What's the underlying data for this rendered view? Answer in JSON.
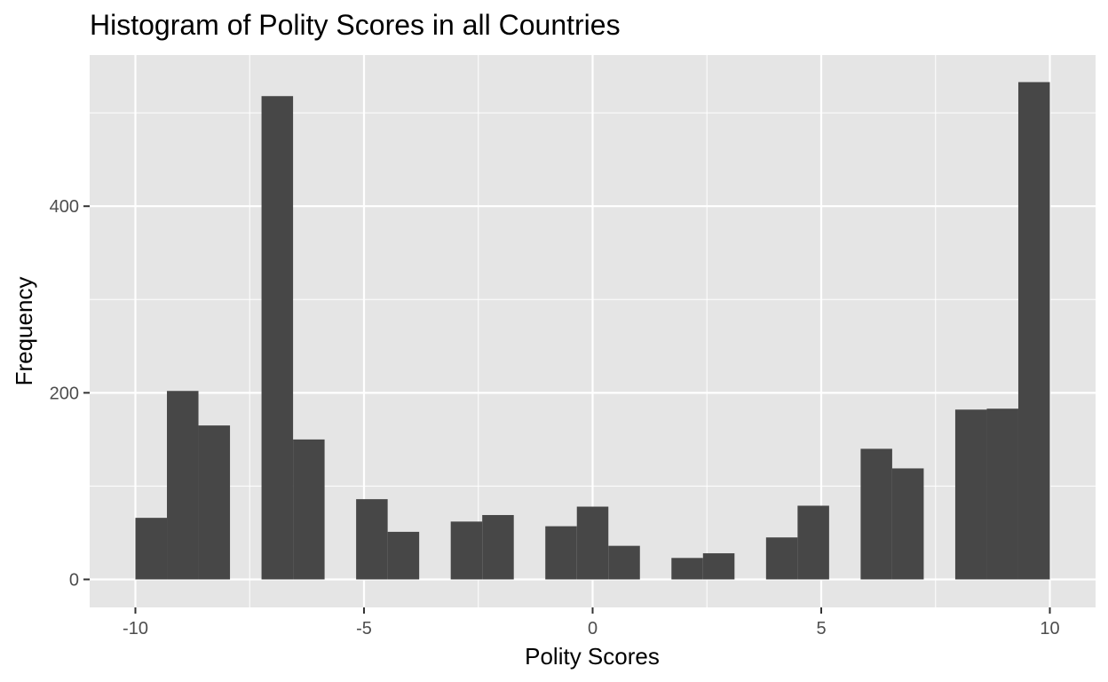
{
  "chart_data": {
    "type": "histogram",
    "title": "Histogram of Polity Scores in all Countries",
    "xlabel": "Polity Scores",
    "ylabel": "Frequency",
    "xlim": [
      -11,
      11
    ],
    "ylim": [
      -30,
      562
    ],
    "x_ticks": [
      -10,
      -5,
      0,
      5,
      10
    ],
    "x_tick_labels": [
      "-10",
      "-5",
      "0",
      "5",
      "10"
    ],
    "y_ticks": [
      0,
      200,
      400
    ],
    "y_tick_labels": [
      "0",
      "200",
      "400"
    ],
    "x_minor_gridlines": [
      -7.5,
      -2.5,
      2.5,
      7.5
    ],
    "y_minor_gridlines": [
      100,
      300,
      500
    ],
    "grid": true,
    "legend": "none",
    "bin_width": 0.6897,
    "bins": [
      {
        "x_start": -10.0,
        "x_end": -9.3103,
        "count": 66
      },
      {
        "x_start": -9.3103,
        "x_end": -8.6207,
        "count": 202
      },
      {
        "x_start": -8.6207,
        "x_end": -7.931,
        "count": 165
      },
      {
        "x_start": -7.931,
        "x_end": -7.2414,
        "count": 0
      },
      {
        "x_start": -7.2414,
        "x_end": -6.5517,
        "count": 518
      },
      {
        "x_start": -6.5517,
        "x_end": -5.8621,
        "count": 150
      },
      {
        "x_start": -5.8621,
        "x_end": -5.1724,
        "count": 0
      },
      {
        "x_start": -5.1724,
        "x_end": -4.4828,
        "count": 86
      },
      {
        "x_start": -4.4828,
        "x_end": -3.7931,
        "count": 51
      },
      {
        "x_start": -3.7931,
        "x_end": -3.1034,
        "count": 0
      },
      {
        "x_start": -3.1034,
        "x_end": -2.4138,
        "count": 62
      },
      {
        "x_start": -2.4138,
        "x_end": -1.7241,
        "count": 69
      },
      {
        "x_start": -1.7241,
        "x_end": -1.0345,
        "count": 0
      },
      {
        "x_start": -1.0345,
        "x_end": -0.3448,
        "count": 57
      },
      {
        "x_start": -0.3448,
        "x_end": 0.3448,
        "count": 78
      },
      {
        "x_start": 0.3448,
        "x_end": 1.0345,
        "count": 36
      },
      {
        "x_start": 1.0345,
        "x_end": 1.7241,
        "count": 0
      },
      {
        "x_start": 1.7241,
        "x_end": 2.4138,
        "count": 23
      },
      {
        "x_start": 2.4138,
        "x_end": 3.1034,
        "count": 28
      },
      {
        "x_start": 3.1034,
        "x_end": 3.7931,
        "count": 0
      },
      {
        "x_start": 3.7931,
        "x_end": 4.4828,
        "count": 45
      },
      {
        "x_start": 4.4828,
        "x_end": 5.1724,
        "count": 79
      },
      {
        "x_start": 5.1724,
        "x_end": 5.8621,
        "count": 0
      },
      {
        "x_start": 5.8621,
        "x_end": 6.5517,
        "count": 140
      },
      {
        "x_start": 6.5517,
        "x_end": 7.2414,
        "count": 119
      },
      {
        "x_start": 7.2414,
        "x_end": 7.931,
        "count": 0
      },
      {
        "x_start": 7.931,
        "x_end": 8.6207,
        "count": 182
      },
      {
        "x_start": 8.6207,
        "x_end": 9.3103,
        "count": 183
      },
      {
        "x_start": 9.3103,
        "x_end": 10.0,
        "count": 533
      }
    ]
  },
  "colors": {
    "panel_background": "#e5e5e5",
    "gridline": "#ffffff",
    "bar_fill": "#474747",
    "axis_tick": "#333333",
    "tick_label": "#4d4d4d",
    "title": "#000000"
  }
}
